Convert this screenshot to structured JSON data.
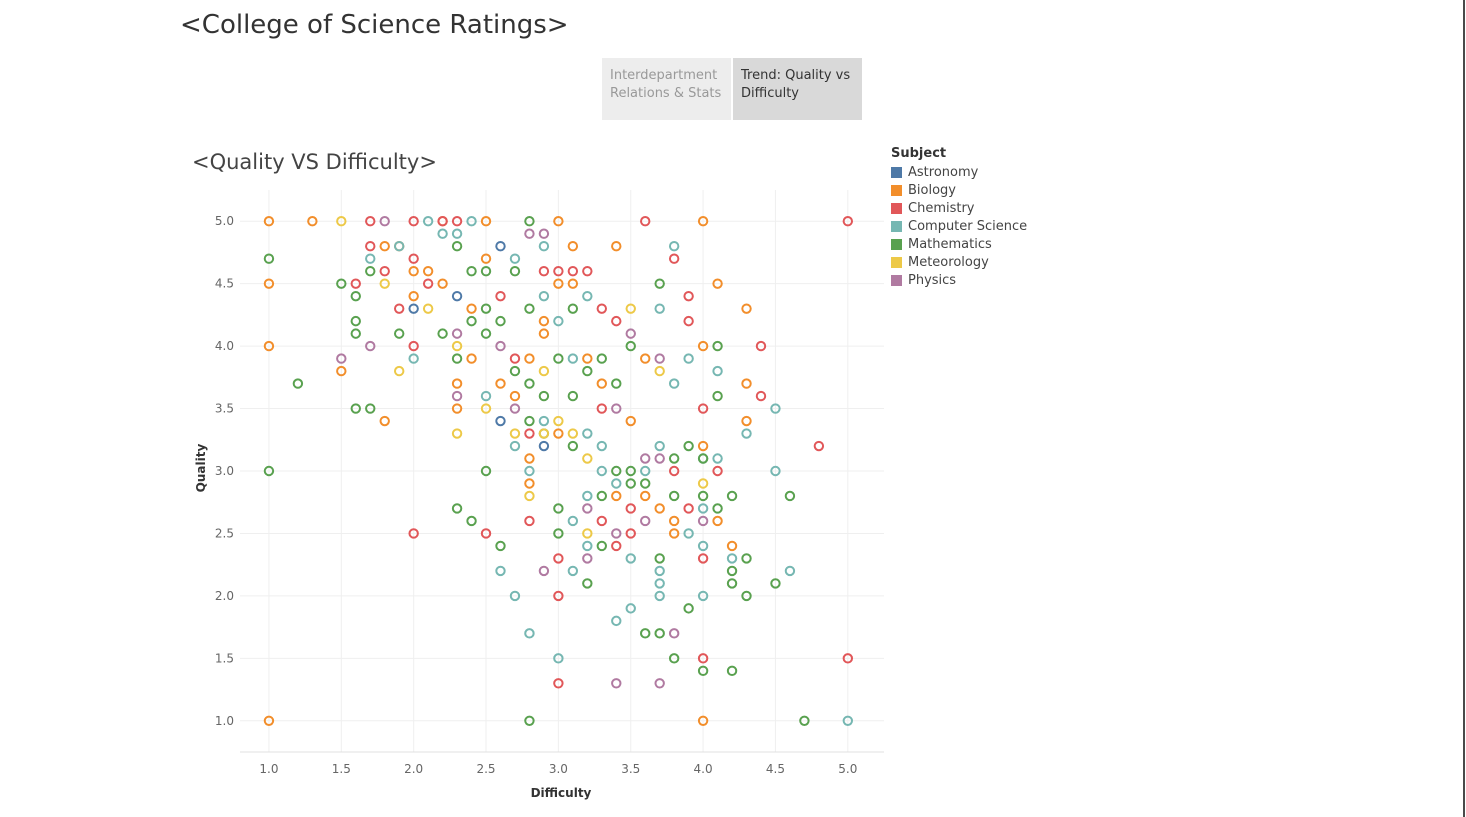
{
  "dashboard": {
    "title": "<College of Science Ratings>"
  },
  "tabs": [
    {
      "label": "Interdepartment Relations & Stats",
      "active": false
    },
    {
      "label": "Trend: Quality vs Difficulty",
      "active": true
    }
  ],
  "sheet": {
    "title": "<Quality VS Difficulty>"
  },
  "legend": {
    "title": "Subject",
    "items": [
      {
        "label": "Astronomy",
        "color": "#4e79a7"
      },
      {
        "label": "Biology",
        "color": "#f28e2b"
      },
      {
        "label": "Chemistry",
        "color": "#e15759"
      },
      {
        "label": "Computer Science",
        "color": "#76b7b2"
      },
      {
        "label": "Mathematics",
        "color": "#59a14f"
      },
      {
        "label": "Meteorology",
        "color": "#edc948"
      },
      {
        "label": "Physics",
        "color": "#b07aa1"
      }
    ]
  },
  "chart_data": {
    "type": "scatter",
    "title": "<Quality VS Difficulty>",
    "xlabel": "Difficulty",
    "ylabel": "Quality",
    "xlim": [
      0.8,
      5.25
    ],
    "ylim": [
      0.75,
      5.25
    ],
    "xticks": [
      "1.0",
      "1.5",
      "2.0",
      "2.5",
      "3.0",
      "3.5",
      "4.0",
      "4.5",
      "5.0"
    ],
    "yticks": [
      "1.0",
      "1.5",
      "2.0",
      "2.5",
      "3.0",
      "3.5",
      "4.0",
      "4.5",
      "5.0"
    ],
    "grid": true,
    "marker": "open-circle",
    "legend_position": "right",
    "series": [
      {
        "name": "Astronomy",
        "points": [
          [
            2.0,
            4.3
          ],
          [
            2.3,
            4.4
          ],
          [
            2.6,
            4.8
          ],
          [
            2.6,
            3.4
          ],
          [
            2.9,
            3.2
          ]
        ]
      },
      {
        "name": "Biology",
        "points": [
          [
            1.0,
            5.0
          ],
          [
            1.3,
            5.0
          ],
          [
            1.0,
            4.5
          ],
          [
            1.0,
            4.0
          ],
          [
            1.5,
            3.8
          ],
          [
            1.8,
            3.4
          ],
          [
            1.0,
            1.0
          ],
          [
            1.8,
            4.8
          ],
          [
            1.9,
            4.8
          ],
          [
            2.0,
            4.6
          ],
          [
            2.0,
            4.4
          ],
          [
            2.1,
            4.6
          ],
          [
            2.2,
            5.0
          ],
          [
            2.2,
            4.5
          ],
          [
            2.3,
            3.7
          ],
          [
            2.3,
            3.5
          ],
          [
            2.4,
            4.3
          ],
          [
            2.5,
            5.0
          ],
          [
            2.5,
            4.7
          ],
          [
            2.6,
            3.7
          ],
          [
            2.7,
            3.6
          ],
          [
            2.8,
            3.1
          ],
          [
            2.8,
            2.9
          ],
          [
            2.9,
            4.2
          ],
          [
            2.9,
            4.1
          ],
          [
            3.0,
            5.0
          ],
          [
            3.0,
            4.5
          ],
          [
            3.0,
            3.3
          ],
          [
            3.1,
            4.8
          ],
          [
            3.1,
            4.5
          ],
          [
            3.2,
            3.9
          ],
          [
            3.3,
            3.7
          ],
          [
            3.4,
            4.8
          ],
          [
            3.4,
            2.8
          ],
          [
            3.5,
            3.4
          ],
          [
            3.6,
            3.9
          ],
          [
            3.6,
            2.8
          ],
          [
            3.7,
            2.7
          ],
          [
            3.8,
            2.6
          ],
          [
            3.8,
            2.5
          ],
          [
            4.0,
            5.0
          ],
          [
            4.0,
            4.0
          ],
          [
            4.0,
            3.2
          ],
          [
            4.0,
            1.0
          ],
          [
            4.1,
            4.5
          ],
          [
            4.1,
            2.6
          ],
          [
            4.2,
            2.4
          ],
          [
            4.3,
            4.3
          ],
          [
            4.3,
            3.7
          ],
          [
            4.3,
            3.4
          ],
          [
            2.4,
            3.9
          ],
          [
            2.8,
            3.9
          ]
        ]
      },
      {
        "name": "Chemistry",
        "points": [
          [
            1.7,
            5.0
          ],
          [
            1.7,
            4.8
          ],
          [
            1.6,
            4.5
          ],
          [
            1.8,
            4.6
          ],
          [
            1.9,
            4.3
          ],
          [
            2.0,
            5.0
          ],
          [
            2.0,
            4.7
          ],
          [
            2.0,
            4.0
          ],
          [
            2.1,
            4.5
          ],
          [
            2.2,
            5.0
          ],
          [
            2.3,
            5.0
          ],
          [
            2.0,
            2.5
          ],
          [
            2.5,
            2.5
          ],
          [
            2.6,
            4.4
          ],
          [
            2.7,
            3.9
          ],
          [
            2.8,
            3.3
          ],
          [
            2.8,
            2.6
          ],
          [
            2.9,
            4.6
          ],
          [
            3.0,
            4.6
          ],
          [
            3.0,
            2.3
          ],
          [
            3.0,
            2.0
          ],
          [
            3.0,
            1.3
          ],
          [
            3.1,
            4.6
          ],
          [
            3.2,
            4.6
          ],
          [
            3.3,
            4.3
          ],
          [
            3.3,
            3.5
          ],
          [
            3.3,
            2.6
          ],
          [
            3.4,
            4.2
          ],
          [
            3.4,
            2.4
          ],
          [
            3.5,
            2.5
          ],
          [
            3.5,
            2.7
          ],
          [
            3.6,
            5.0
          ],
          [
            3.8,
            4.7
          ],
          [
            3.8,
            3.0
          ],
          [
            3.9,
            4.4
          ],
          [
            3.9,
            4.2
          ],
          [
            3.9,
            2.7
          ],
          [
            4.0,
            3.5
          ],
          [
            4.0,
            2.3
          ],
          [
            4.0,
            1.5
          ],
          [
            4.1,
            3.0
          ],
          [
            4.4,
            4.0
          ],
          [
            4.4,
            3.6
          ],
          [
            4.8,
            3.2
          ],
          [
            5.0,
            5.0
          ],
          [
            5.0,
            1.5
          ]
        ]
      },
      {
        "name": "Computer Science",
        "points": [
          [
            1.7,
            4.7
          ],
          [
            1.9,
            4.8
          ],
          [
            2.0,
            3.9
          ],
          [
            2.1,
            5.0
          ],
          [
            2.2,
            4.9
          ],
          [
            2.3,
            4.9
          ],
          [
            2.4,
            5.0
          ],
          [
            2.5,
            3.6
          ],
          [
            2.6,
            2.2
          ],
          [
            2.7,
            4.7
          ],
          [
            2.7,
            3.2
          ],
          [
            2.7,
            2.0
          ],
          [
            2.8,
            3.0
          ],
          [
            2.8,
            1.7
          ],
          [
            2.9,
            4.8
          ],
          [
            2.9,
            4.4
          ],
          [
            2.9,
            3.4
          ],
          [
            3.0,
            4.2
          ],
          [
            3.0,
            1.5
          ],
          [
            3.1,
            3.9
          ],
          [
            3.1,
            2.6
          ],
          [
            3.1,
            2.2
          ],
          [
            3.2,
            4.4
          ],
          [
            3.2,
            3.3
          ],
          [
            3.2,
            2.8
          ],
          [
            3.2,
            2.4
          ],
          [
            3.3,
            3.2
          ],
          [
            3.3,
            3.0
          ],
          [
            3.4,
            2.9
          ],
          [
            3.4,
            1.8
          ],
          [
            3.5,
            2.3
          ],
          [
            3.5,
            1.9
          ],
          [
            3.6,
            3.0
          ],
          [
            3.7,
            4.3
          ],
          [
            3.7,
            3.2
          ],
          [
            3.7,
            2.2
          ],
          [
            3.7,
            2.1
          ],
          [
            3.7,
            2.0
          ],
          [
            3.8,
            4.8
          ],
          [
            3.8,
            3.7
          ],
          [
            3.9,
            3.9
          ],
          [
            3.9,
            2.5
          ],
          [
            4.0,
            3.1
          ],
          [
            4.0,
            2.7
          ],
          [
            4.0,
            2.4
          ],
          [
            4.0,
            2.0
          ],
          [
            4.1,
            3.8
          ],
          [
            4.1,
            3.1
          ],
          [
            4.2,
            2.3
          ],
          [
            4.3,
            3.3
          ],
          [
            4.5,
            3.5
          ],
          [
            4.5,
            3.0
          ],
          [
            4.6,
            2.2
          ],
          [
            5.0,
            1.0
          ]
        ]
      },
      {
        "name": "Mathematics",
        "points": [
          [
            1.0,
            4.7
          ],
          [
            1.0,
            3.0
          ],
          [
            1.2,
            3.7
          ],
          [
            1.5,
            4.5
          ],
          [
            1.6,
            4.4
          ],
          [
            1.6,
            4.2
          ],
          [
            1.6,
            4.1
          ],
          [
            1.6,
            3.5
          ],
          [
            1.7,
            3.5
          ],
          [
            1.7,
            4.6
          ],
          [
            1.9,
            4.1
          ],
          [
            2.2,
            4.1
          ],
          [
            2.3,
            4.8
          ],
          [
            2.3,
            3.9
          ],
          [
            2.3,
            2.7
          ],
          [
            2.4,
            4.6
          ],
          [
            2.4,
            4.2
          ],
          [
            2.4,
            2.6
          ],
          [
            2.5,
            4.6
          ],
          [
            2.5,
            4.3
          ],
          [
            2.5,
            4.1
          ],
          [
            2.5,
            3.0
          ],
          [
            2.6,
            4.2
          ],
          [
            2.6,
            2.4
          ],
          [
            2.7,
            4.6
          ],
          [
            2.7,
            3.8
          ],
          [
            2.8,
            5.0
          ],
          [
            2.8,
            4.3
          ],
          [
            2.8,
            3.7
          ],
          [
            2.8,
            3.4
          ],
          [
            2.8,
            1.0
          ],
          [
            2.9,
            3.6
          ],
          [
            2.9,
            3.3
          ],
          [
            3.0,
            3.9
          ],
          [
            3.0,
            2.7
          ],
          [
            3.0,
            2.5
          ],
          [
            3.1,
            4.3
          ],
          [
            3.1,
            3.6
          ],
          [
            3.1,
            3.2
          ],
          [
            3.2,
            3.8
          ],
          [
            3.2,
            2.1
          ],
          [
            3.3,
            3.9
          ],
          [
            3.3,
            2.8
          ],
          [
            3.3,
            2.4
          ],
          [
            3.4,
            3.7
          ],
          [
            3.4,
            3.0
          ],
          [
            3.5,
            4.0
          ],
          [
            3.5,
            3.0
          ],
          [
            3.5,
            2.9
          ],
          [
            3.6,
            2.9
          ],
          [
            3.6,
            1.7
          ],
          [
            3.7,
            4.5
          ],
          [
            3.7,
            2.3
          ],
          [
            3.7,
            1.7
          ],
          [
            3.8,
            3.1
          ],
          [
            3.8,
            2.8
          ],
          [
            3.8,
            1.5
          ],
          [
            3.9,
            3.2
          ],
          [
            3.9,
            1.9
          ],
          [
            4.0,
            3.1
          ],
          [
            4.0,
            2.8
          ],
          [
            4.0,
            1.4
          ],
          [
            4.1,
            4.0
          ],
          [
            4.1,
            3.6
          ],
          [
            4.1,
            2.7
          ],
          [
            4.2,
            2.8
          ],
          [
            4.2,
            2.2
          ],
          [
            4.2,
            2.1
          ],
          [
            4.2,
            1.4
          ],
          [
            4.3,
            2.3
          ],
          [
            4.3,
            2.0
          ],
          [
            4.5,
            2.1
          ],
          [
            4.6,
            2.8
          ],
          [
            4.7,
            1.0
          ]
        ]
      },
      {
        "name": "Meteorology",
        "points": [
          [
            1.5,
            5.0
          ],
          [
            1.8,
            4.5
          ],
          [
            1.9,
            3.8
          ],
          [
            2.1,
            4.3
          ],
          [
            2.3,
            4.0
          ],
          [
            2.3,
            3.3
          ],
          [
            2.5,
            3.5
          ],
          [
            2.7,
            3.3
          ],
          [
            2.8,
            2.8
          ],
          [
            2.9,
            3.3
          ],
          [
            3.0,
            3.4
          ],
          [
            3.1,
            3.3
          ],
          [
            3.2,
            3.1
          ],
          [
            3.2,
            2.5
          ],
          [
            3.5,
            4.3
          ],
          [
            3.7,
            3.8
          ],
          [
            4.0,
            2.9
          ],
          [
            2.9,
            3.8
          ]
        ]
      },
      {
        "name": "Physics",
        "points": [
          [
            1.8,
            5.0
          ],
          [
            1.5,
            3.9
          ],
          [
            1.7,
            4.0
          ],
          [
            2.3,
            4.1
          ],
          [
            2.3,
            3.6
          ],
          [
            2.6,
            4.0
          ],
          [
            2.7,
            3.5
          ],
          [
            2.8,
            4.9
          ],
          [
            2.9,
            4.9
          ],
          [
            2.9,
            2.2
          ],
          [
            3.2,
            2.3
          ],
          [
            3.2,
            2.7
          ],
          [
            3.4,
            3.5
          ],
          [
            3.4,
            2.5
          ],
          [
            3.4,
            1.3
          ],
          [
            3.5,
            4.1
          ],
          [
            3.6,
            3.1
          ],
          [
            3.6,
            2.6
          ],
          [
            3.7,
            3.1
          ],
          [
            3.7,
            3.9
          ],
          [
            3.7,
            1.3
          ],
          [
            3.8,
            1.7
          ],
          [
            4.0,
            2.6
          ]
        ]
      }
    ]
  }
}
